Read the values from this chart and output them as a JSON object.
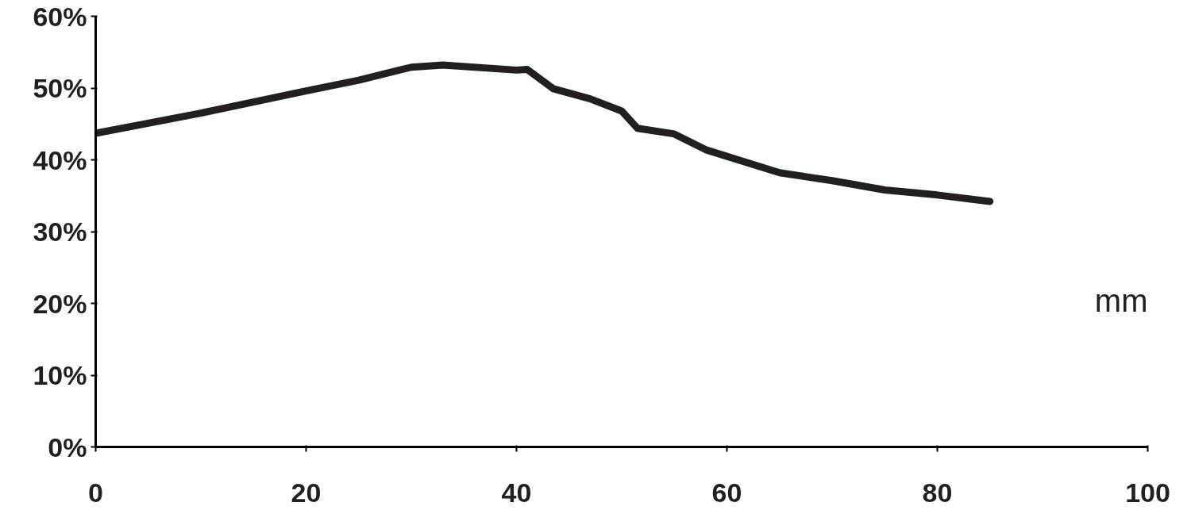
{
  "chart_data": {
    "type": "line",
    "xlabel": "mm",
    "x": [
      0,
      10,
      20,
      25,
      30,
      33,
      40,
      41,
      43.5,
      47,
      50,
      51.5,
      55,
      58,
      65,
      70,
      75,
      80,
      85
    ],
    "series": [
      {
        "color": "#231f20",
        "values": [
          43.7,
          46.5,
          49.6,
          51.1,
          52.9,
          53.2,
          52.5,
          52.6,
          49.9,
          48.5,
          46.8,
          44.4,
          43.6,
          41.4,
          38.2,
          37.1,
          35.8,
          35.1,
          34.2
        ]
      }
    ],
    "xlim": [
      0,
      100
    ],
    "xticks": [
      0,
      20,
      40,
      60,
      80,
      100
    ],
    "ylim": [
      0,
      60
    ],
    "yticks": [
      {
        "value": 0,
        "label": "0%"
      },
      {
        "value": 10,
        "label": "10%"
      },
      {
        "value": 20,
        "label": "20%"
      },
      {
        "value": 30,
        "label": "30%"
      },
      {
        "value": 40,
        "label": "40%"
      },
      {
        "value": 50,
        "label": "50%"
      },
      {
        "value": 60,
        "label": "60%"
      }
    ],
    "grid": false,
    "marker": "none",
    "line_style": "solid"
  }
}
